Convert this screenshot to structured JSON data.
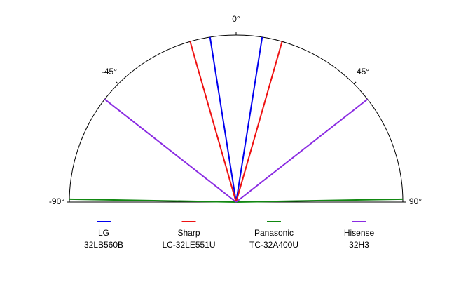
{
  "chart_data": {
    "type": "polar",
    "thetalim": [
      -90,
      90
    ],
    "thetaticks": [
      {
        "value": -90,
        "label": "-90°"
      },
      {
        "value": -45,
        "label": "-45°"
      },
      {
        "value": 0,
        "label": "0°"
      },
      {
        "value": 45,
        "label": "45°"
      },
      {
        "value": 90,
        "label": "90°"
      }
    ],
    "series": [
      {
        "name": "LG",
        "model": "32LB560B",
        "color": "#0000ee",
        "values": [
          -9,
          9
        ]
      },
      {
        "name": "Sharp",
        "model": "LC-32LE551U",
        "color": "#ee1111",
        "values": [
          -16,
          16
        ]
      },
      {
        "name": "Panasonic",
        "model": "TC-32A400U",
        "color": "#118811",
        "values": [
          -89,
          89
        ]
      },
      {
        "name": "Hisense",
        "model": "32H3",
        "color": "#8a2be2",
        "values": [
          -52,
          52
        ]
      }
    ]
  }
}
